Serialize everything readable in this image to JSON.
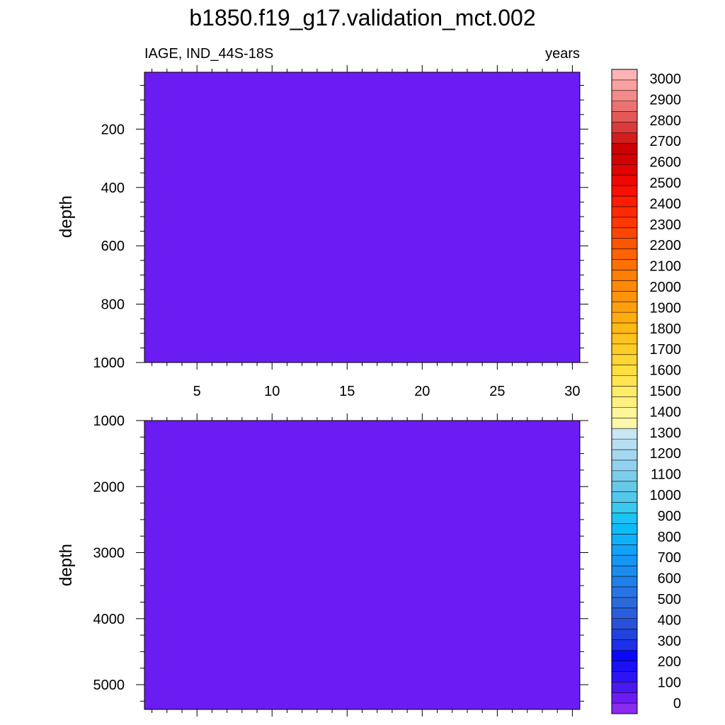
{
  "chart_data": {
    "type": "heatmap",
    "title": "b1850.f19_g17.validation_mct.002",
    "left_string": "IAGE, IND_44S-18S",
    "right_string": "years",
    "x": {
      "label": "",
      "range": [
        1.5,
        30.5
      ],
      "major_ticks": [
        5,
        10,
        15,
        20,
        25,
        30
      ],
      "tick_labels": [
        "5",
        "10",
        "15",
        "20",
        "25",
        "30"
      ],
      "minor_step": 1
    },
    "panels": [
      {
        "name": "upper",
        "ylabel": "depth",
        "y_range": [
          5,
          1000
        ],
        "y_reversed": true,
        "major_ticks": [
          200,
          400,
          600,
          800,
          1000
        ],
        "tick_labels": [
          "200",
          "400",
          "600",
          "800",
          "1000"
        ],
        "minor_step": 50,
        "show_x_labels": true,
        "field_value_range": [
          0,
          100
        ],
        "fill_color": "#6a1cf2"
      },
      {
        "name": "lower",
        "ylabel": "depth",
        "y_range": [
          1000,
          5375
        ],
        "y_reversed": true,
        "major_ticks": [
          1000,
          2000,
          3000,
          4000,
          5000
        ],
        "tick_labels": [
          "1000",
          "2000",
          "3000",
          "4000",
          "5000"
        ],
        "minor_step": 250,
        "show_x_labels": false,
        "field_value_range": [
          0,
          100
        ],
        "fill_color": "#6a1cf2"
      }
    ],
    "colorbar": {
      "levels": [
        0,
        100,
        200,
        300,
        400,
        500,
        600,
        700,
        800,
        900,
        1000,
        1100,
        1200,
        1300,
        1400,
        1500,
        1600,
        1700,
        1800,
        1900,
        2000,
        2100,
        2200,
        2300,
        2400,
        2500,
        2600,
        2700,
        2800,
        2900,
        3000
      ],
      "labels": [
        "0",
        "100",
        "200",
        "300",
        "400",
        "500",
        "600",
        "700",
        "800",
        "900",
        "1000",
        "1100",
        "1200",
        "1300",
        "1400",
        "1500",
        "1600",
        "1700",
        "1800",
        "1900",
        "2000",
        "2100",
        "2200",
        "2300",
        "2400",
        "2500",
        "2600",
        "2700",
        "2800",
        "2900",
        "3000"
      ],
      "colors": [
        "#8a2bf0",
        "#6a1cf2",
        "#4a18f0",
        "#2c14f4",
        "#1a10f6",
        "#0a08f8",
        "#1c30e8",
        "#2242de",
        "#2852da",
        "#2a5edc",
        "#2c6adc",
        "#2874e4",
        "#2080ea",
        "#1a8cee",
        "#1496f2",
        "#12a2f6",
        "#10b0f8",
        "#0cbcf8",
        "#1ac4f6",
        "#38c8f0",
        "#52c8ec",
        "#68c8ea",
        "#7ccdec",
        "#90d2ee",
        "#a4d8f0",
        "#b6dff2",
        "#c8e6f4",
        "#fff8a8",
        "#fff59a",
        "#fff080",
        "#ffec68",
        "#ffe650",
        "#ffde40",
        "#ffd634",
        "#ffcc28",
        "#ffc21e",
        "#ffb814",
        "#ffac10",
        "#ffa00c",
        "#ff940a",
        "#ff8a08",
        "#ff7e06",
        "#ff7004",
        "#ff6202",
        "#ff5400",
        "#ff4600",
        "#ff3800",
        "#ff2a00",
        "#ff1c00",
        "#f81000",
        "#ec0800",
        "#e00400",
        "#d40000",
        "#cc0000",
        "#d41c1c",
        "#dc3a3a",
        "#e45858",
        "#ec7272",
        "#f48a8a",
        "#faa0a0",
        "#ffb4b4"
      ]
    }
  }
}
